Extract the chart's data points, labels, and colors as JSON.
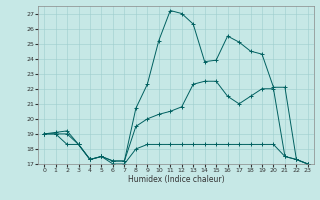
{
  "xlabel": "Humidex (Indice chaleur)",
  "xlim": [
    -0.5,
    23.5
  ],
  "ylim": [
    17,
    27.5
  ],
  "yticks": [
    17,
    18,
    19,
    20,
    21,
    22,
    23,
    24,
    25,
    26,
    27
  ],
  "xticks": [
    0,
    1,
    2,
    3,
    4,
    5,
    6,
    7,
    8,
    9,
    10,
    11,
    12,
    13,
    14,
    15,
    16,
    17,
    18,
    19,
    20,
    21,
    22,
    23
  ],
  "bg_color": "#c6e8e6",
  "line_color": "#006060",
  "series": [
    {
      "x": [
        0,
        1,
        2,
        3,
        4,
        5,
        6,
        7,
        8,
        9,
        10,
        11,
        12,
        13,
        14,
        15,
        16,
        17,
        18,
        19,
        20,
        21,
        22,
        23
      ],
      "y": [
        19,
        19,
        18.3,
        18.3,
        17.3,
        17.5,
        17.0,
        17.0,
        18.0,
        18.3,
        18.3,
        18.3,
        18.3,
        18.3,
        18.3,
        18.3,
        18.3,
        18.3,
        18.3,
        18.3,
        18.3,
        17.5,
        17.3,
        17.0
      ]
    },
    {
      "x": [
        0,
        1,
        2,
        3,
        4,
        5,
        6,
        7,
        8,
        9,
        10,
        11,
        12,
        13,
        14,
        15,
        16,
        17,
        18,
        19,
        20,
        21,
        22,
        23
      ],
      "y": [
        19,
        19,
        19,
        18.3,
        17.3,
        17.5,
        17.2,
        17.2,
        19.5,
        20.0,
        20.3,
        20.5,
        20.8,
        22.3,
        22.5,
        22.5,
        21.5,
        21.0,
        21.5,
        22.0,
        22.0,
        17.5,
        17.3,
        17.0
      ]
    },
    {
      "x": [
        0,
        1,
        2,
        3,
        4,
        5,
        6,
        7,
        8,
        9,
        10,
        11,
        12,
        13,
        14,
        15,
        16,
        17,
        18,
        19,
        20,
        21,
        22,
        23
      ],
      "y": [
        19,
        19.1,
        19.2,
        18.3,
        17.3,
        17.5,
        17.2,
        17.2,
        20.7,
        22.3,
        25.2,
        27.2,
        27.0,
        26.3,
        23.8,
        23.9,
        25.5,
        25.1,
        24.5,
        24.3,
        22.1,
        22.1,
        17.3,
        17.0
      ]
    }
  ]
}
